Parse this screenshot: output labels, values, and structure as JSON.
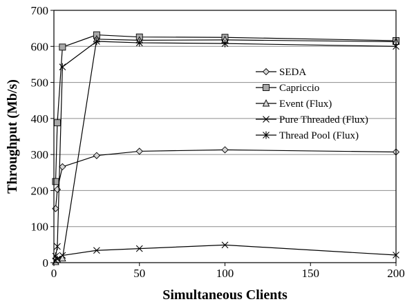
{
  "chart_data": {
    "type": "line",
    "title": "",
    "xlabel": "Simultaneous Clients",
    "ylabel": "Throughput (Mb/s)",
    "xlim": [
      0,
      200
    ],
    "ylim": [
      0,
      700
    ],
    "xticks": [
      0,
      50,
      100,
      150,
      200
    ],
    "yticks": [
      0,
      100,
      200,
      300,
      400,
      500,
      600,
      700
    ],
    "xtick_labels": [
      "0",
      "50",
      "100",
      "150",
      "200"
    ],
    "ytick_labels": [
      "0",
      "100",
      "200",
      "300",
      "400",
      "500",
      "600",
      "700"
    ],
    "grid": "horizontal",
    "legend_position": "right",
    "series": [
      {
        "name": "SEDA",
        "marker": "diamond",
        "x": [
          1,
          2,
          5,
          25,
          50,
          100,
          200
        ],
        "y": [
          150,
          203,
          266,
          297,
          309,
          313,
          307
        ]
      },
      {
        "name": "Capriccio",
        "marker": "square",
        "x": [
          1,
          2,
          5,
          25,
          50,
          100,
          200
        ],
        "y": [
          225,
          388,
          598,
          632,
          626,
          625,
          616
        ]
      },
      {
        "name": "Event (Flux)",
        "marker": "triangle",
        "x": [
          1,
          2,
          5,
          25,
          50,
          100,
          200
        ],
        "y": [
          2,
          8,
          12,
          620,
          617,
          618,
          613
        ]
      },
      {
        "name": "Pure Threaded (Flux)",
        "marker": "x",
        "x": [
          1,
          2,
          5,
          25,
          50,
          100,
          200
        ],
        "y": [
          5,
          10,
          20,
          34,
          39,
          49,
          21
        ]
      },
      {
        "name": "Thread Pool (Flux)",
        "marker": "star",
        "x": [
          1,
          2,
          5,
          25,
          50,
          100,
          200
        ],
        "y": [
          18,
          45,
          543,
          614,
          610,
          608,
          600
        ]
      }
    ]
  }
}
